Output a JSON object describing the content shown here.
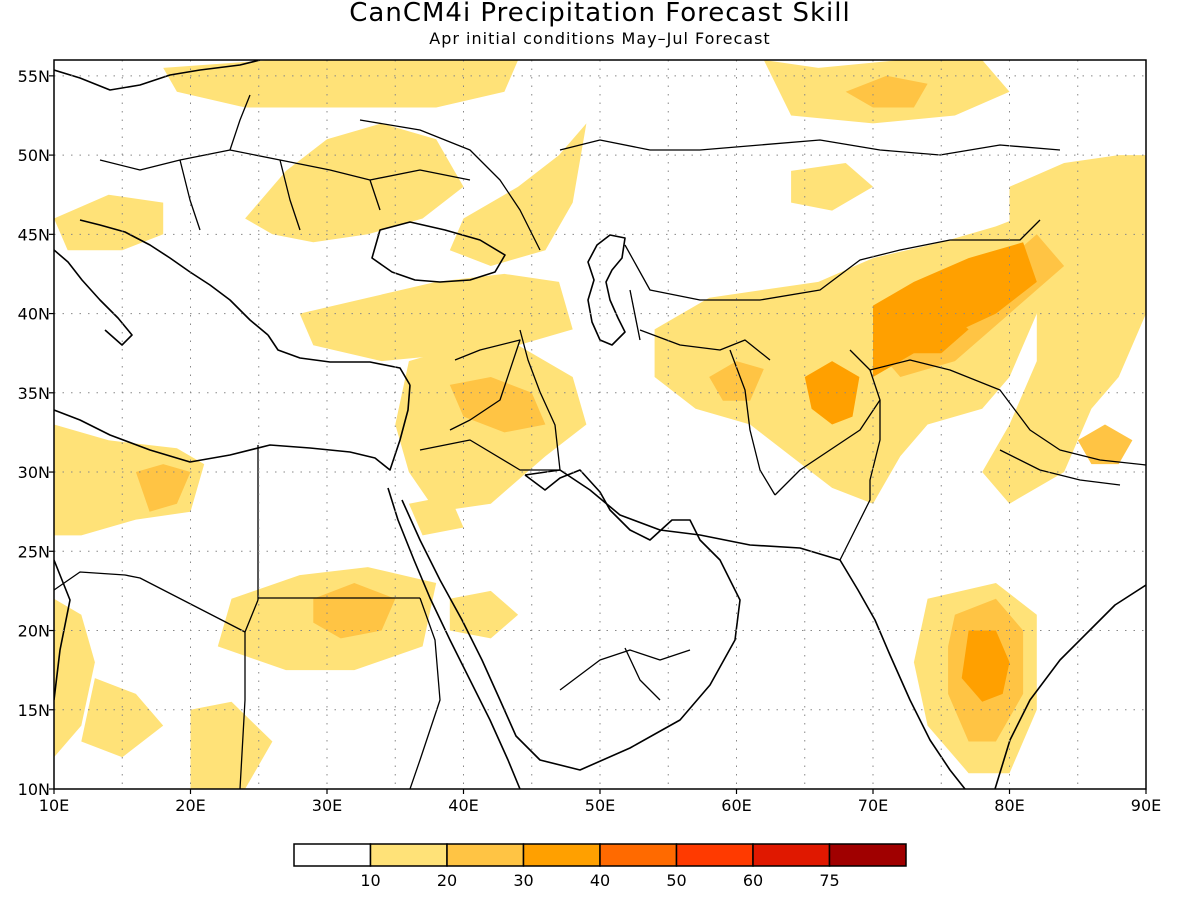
{
  "title": "CanCM4i Precipitation Forecast Skill",
  "subtitle": "Apr initial conditions  May–Jul Forecast",
  "map": {
    "lon_range": [
      10,
      90
    ],
    "lat_range": [
      10,
      56
    ],
    "lon_ticks": [
      "10E",
      "20E",
      "30E",
      "40E",
      "50E",
      "60E",
      "70E",
      "80E",
      "90E"
    ],
    "lat_ticks": [
      "10N",
      "15N",
      "20N",
      "25N",
      "30N",
      "35N",
      "40N",
      "45N",
      "50N",
      "55N"
    ],
    "grid": "dotted"
  },
  "colorbar": {
    "colors": [
      "#ffffff",
      "#ffe278",
      "#ffc444",
      "#ffa000",
      "#ff6a00",
      "#ff3a00",
      "#e01800",
      "#a00000"
    ],
    "labels": [
      "10",
      "20",
      "30",
      "40",
      "50",
      "60",
      "75"
    ]
  },
  "skill_regions": [
    {
      "name": "central-asia-high",
      "level": 3,
      "pts": [
        [
          70,
          40.5
        ],
        [
          73,
          42
        ],
        [
          77,
          43.5
        ],
        [
          81,
          44.5
        ],
        [
          82,
          42
        ],
        [
          79,
          40
        ],
        [
          74,
          38
        ],
        [
          70,
          36
        ]
      ]
    },
    {
      "name": "tajikistan-core",
      "level": 3,
      "pts": [
        [
          72,
          39
        ],
        [
          75,
          40.5
        ],
        [
          77,
          39
        ],
        [
          75,
          37.5
        ],
        [
          73,
          37.5
        ]
      ]
    },
    {
      "name": "afghanistan-core",
      "level": 3,
      "pts": [
        [
          65,
          36
        ],
        [
          67,
          37
        ],
        [
          69,
          36
        ],
        [
          68.5,
          33.5
        ],
        [
          67,
          33
        ],
        [
          65.5,
          34
        ]
      ]
    },
    {
      "name": "india-core",
      "level": 3,
      "pts": [
        [
          77,
          20
        ],
        [
          79,
          20
        ],
        [
          80,
          18
        ],
        [
          79.5,
          16
        ],
        [
          78,
          15.5
        ],
        [
          76.5,
          17
        ]
      ]
    },
    {
      "name": "libya-core",
      "level": 2,
      "pts": [
        [
          16,
          30
        ],
        [
          18,
          30.5
        ],
        [
          20,
          30
        ],
        [
          19,
          28
        ],
        [
          17,
          27.5
        ]
      ]
    },
    {
      "name": "iraq-core",
      "level": 2,
      "pts": [
        [
          39,
          35.5
        ],
        [
          42,
          36
        ],
        [
          45,
          35
        ],
        [
          46,
          33
        ],
        [
          43,
          32.5
        ],
        [
          40,
          33.5
        ]
      ]
    },
    {
      "name": "kazakh-east-core",
      "level": 2,
      "pts": [
        [
          70,
          38
        ],
        [
          74,
          40
        ],
        [
          78,
          42
        ],
        [
          82,
          45
        ],
        [
          84,
          43
        ],
        [
          80,
          40
        ],
        [
          76,
          37
        ],
        [
          72,
          36
        ]
      ]
    },
    {
      "name": "tibet-core",
      "level": 2,
      "pts": [
        [
          85,
          32
        ],
        [
          87,
          33
        ],
        [
          89,
          32
        ],
        [
          88,
          30.5
        ],
        [
          86,
          30.5
        ]
      ]
    },
    {
      "name": "sudan-core",
      "level": 2,
      "pts": [
        [
          29,
          22
        ],
        [
          32,
          23
        ],
        [
          35,
          22
        ],
        [
          34,
          20
        ],
        [
          31,
          19.5
        ],
        [
          29,
          20.5
        ]
      ]
    },
    {
      "name": "turkmen-core",
      "level": 2,
      "pts": [
        [
          58,
          36
        ],
        [
          60,
          37
        ],
        [
          62,
          36.5
        ],
        [
          61,
          34.5
        ],
        [
          59,
          34.5
        ]
      ]
    },
    {
      "name": "india-outer",
      "level": 2,
      "pts": [
        [
          76,
          21
        ],
        [
          79,
          22
        ],
        [
          81,
          20
        ],
        [
          81,
          16
        ],
        [
          79,
          13
        ],
        [
          77,
          13
        ],
        [
          75.5,
          16
        ],
        [
          75.5,
          19
        ]
      ]
    },
    {
      "name": "siberia-core",
      "level": 2,
      "pts": [
        [
          68,
          54
        ],
        [
          71,
          55
        ],
        [
          74,
          54.5
        ],
        [
          73,
          53
        ],
        [
          70,
          53
        ]
      ]
    },
    {
      "name": "central-asia-yellow",
      "level": 1,
      "pts": [
        [
          54,
          39
        ],
        [
          58,
          41
        ],
        [
          62,
          41.5
        ],
        [
          66,
          42
        ],
        [
          70,
          43.5
        ],
        [
          75,
          44.5
        ],
        [
          79,
          45.5
        ],
        [
          82,
          46.5
        ],
        [
          83,
          45
        ],
        [
          82,
          40
        ],
        [
          80,
          36
        ],
        [
          78,
          34
        ],
        [
          74,
          33
        ],
        [
          72,
          31
        ],
        [
          70,
          28
        ],
        [
          67,
          29
        ],
        [
          64,
          31
        ],
        [
          61,
          33
        ],
        [
          57,
          34
        ],
        [
          54,
          36
        ]
      ]
    },
    {
      "name": "mongolia-china-yellow",
      "level": 1,
      "pts": [
        [
          80,
          48
        ],
        [
          84,
          49.5
        ],
        [
          88,
          50
        ],
        [
          90,
          50
        ],
        [
          90,
          40
        ],
        [
          88,
          36
        ],
        [
          86,
          34
        ],
        [
          84,
          30
        ],
        [
          80,
          28
        ],
        [
          78,
          30
        ],
        [
          80,
          33
        ],
        [
          82,
          37
        ],
        [
          82,
          42
        ],
        [
          80,
          45
        ]
      ]
    },
    {
      "name": "india-yellow",
      "level": 1,
      "pts": [
        [
          74,
          22
        ],
        [
          79,
          23
        ],
        [
          82,
          21
        ],
        [
          82,
          15
        ],
        [
          80,
          11
        ],
        [
          77,
          11
        ],
        [
          74,
          14
        ],
        [
          73,
          18
        ]
      ]
    },
    {
      "name": "mideast-yellow",
      "level": 1,
      "pts": [
        [
          36,
          37
        ],
        [
          40,
          38
        ],
        [
          44,
          38
        ],
        [
          48,
          36
        ],
        [
          49,
          33
        ],
        [
          46,
          31
        ],
        [
          42,
          28
        ],
        [
          38,
          27.5
        ],
        [
          36,
          30
        ],
        [
          35,
          33
        ]
      ]
    },
    {
      "name": "turkey-yellow",
      "level": 1,
      "pts": [
        [
          28,
          40
        ],
        [
          33,
          41
        ],
        [
          38,
          42
        ],
        [
          43,
          42.5
        ],
        [
          47,
          42
        ],
        [
          48,
          39
        ],
        [
          44,
          38
        ],
        [
          40,
          37.5
        ],
        [
          34,
          37
        ],
        [
          29,
          38
        ]
      ]
    },
    {
      "name": "caucasus-yellow",
      "level": 1,
      "pts": [
        [
          40,
          46
        ],
        [
          44,
          48
        ],
        [
          47,
          50
        ],
        [
          49,
          52
        ],
        [
          48,
          47
        ],
        [
          46,
          44
        ],
        [
          42,
          43
        ],
        [
          39,
          44
        ]
      ]
    },
    {
      "name": "eastern-europe-yellow",
      "level": 1,
      "pts": [
        [
          24,
          46
        ],
        [
          27,
          49
        ],
        [
          30,
          51
        ],
        [
          34,
          52
        ],
        [
          38,
          51
        ],
        [
          40,
          48
        ],
        [
          37,
          46
        ],
        [
          33,
          45
        ],
        [
          29,
          44.5
        ],
        [
          26,
          45
        ]
      ]
    },
    {
      "name": "north-europe-yellow",
      "level": 1,
      "pts": [
        [
          18,
          55.5
        ],
        [
          26,
          56
        ],
        [
          34,
          56
        ],
        [
          40,
          56
        ],
        [
          44,
          56
        ],
        [
          43,
          54
        ],
        [
          38,
          53
        ],
        [
          31,
          53
        ],
        [
          24,
          53
        ],
        [
          19,
          54
        ]
      ]
    },
    {
      "name": "siberia-yellow",
      "level": 1,
      "pts": [
        [
          62,
          56
        ],
        [
          66,
          55.5
        ],
        [
          72,
          56
        ],
        [
          78,
          56
        ],
        [
          80,
          54
        ],
        [
          76,
          52.5
        ],
        [
          70,
          52
        ],
        [
          64,
          52.5
        ]
      ]
    },
    {
      "name": "kazakh-north-yellow",
      "level": 1,
      "pts": [
        [
          64,
          49
        ],
        [
          68,
          49.5
        ],
        [
          70,
          48
        ],
        [
          67,
          46.5
        ],
        [
          64,
          47
        ]
      ]
    },
    {
      "name": "libya-yellow",
      "level": 1,
      "pts": [
        [
          10,
          33
        ],
        [
          14,
          32
        ],
        [
          19,
          31.5
        ],
        [
          21,
          30.5
        ],
        [
          20,
          27.5
        ],
        [
          16,
          27
        ],
        [
          12,
          26
        ],
        [
          10,
          26
        ]
      ]
    },
    {
      "name": "sudan-yellow",
      "level": 1,
      "pts": [
        [
          23,
          22
        ],
        [
          28,
          23.5
        ],
        [
          33,
          24
        ],
        [
          38,
          23
        ],
        [
          37,
          19
        ],
        [
          32,
          17.5
        ],
        [
          27,
          17.5
        ],
        [
          22,
          19
        ]
      ]
    },
    {
      "name": "west-africa-yellow",
      "level": 1,
      "pts": [
        [
          10,
          22
        ],
        [
          12,
          21
        ],
        [
          13,
          18
        ],
        [
          12,
          14
        ],
        [
          10,
          12
        ]
      ]
    },
    {
      "name": "chad-yellow",
      "level": 1,
      "pts": [
        [
          13,
          17
        ],
        [
          16,
          16
        ],
        [
          18,
          14
        ],
        [
          15,
          12
        ],
        [
          12,
          13
        ]
      ]
    },
    {
      "name": "darfur-yellow",
      "level": 1,
      "pts": [
        [
          20,
          15
        ],
        [
          23,
          15.5
        ],
        [
          26,
          13
        ],
        [
          24,
          10
        ],
        [
          20,
          10
        ]
      ]
    },
    {
      "name": "saudi-yellow",
      "level": 1,
      "pts": [
        [
          39,
          22
        ],
        [
          42,
          22.5
        ],
        [
          44,
          21
        ],
        [
          42,
          19.5
        ],
        [
          39,
          20
        ]
      ]
    },
    {
      "name": "levant-yellow",
      "level": 1,
      "pts": [
        [
          36,
          28
        ],
        [
          39,
          28.5
        ],
        [
          40,
          26.5
        ],
        [
          37,
          26
        ]
      ]
    },
    {
      "name": "balkans-yellow",
      "level": 1,
      "pts": [
        [
          10,
          46
        ],
        [
          14,
          47.5
        ],
        [
          18,
          47
        ],
        [
          18,
          45
        ],
        [
          15,
          44
        ],
        [
          11,
          44
        ]
      ]
    }
  ]
}
